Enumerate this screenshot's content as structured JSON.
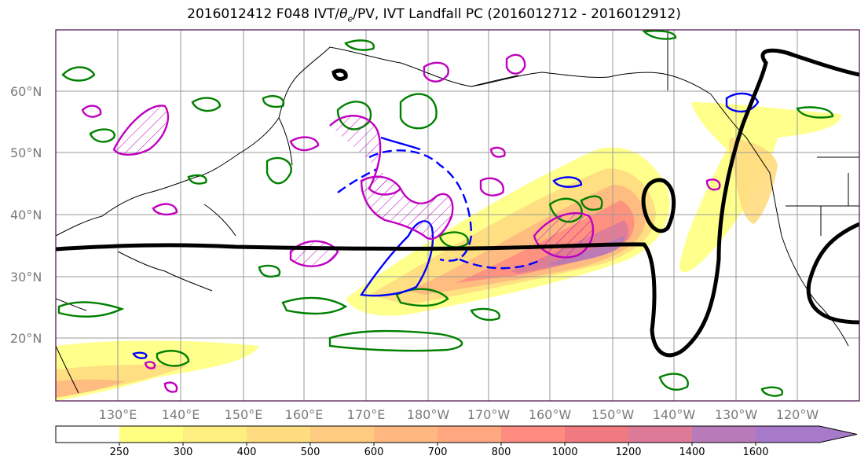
{
  "title_prefix": "2016012412 F048 IVT/",
  "title_theta": "θ",
  "title_theta_sub": "e",
  "title_suffix": "/PV, IVT Landfall PC (2016012712 - 2016012912)",
  "map": {
    "lat_labels": [
      "60°N",
      "50°N",
      "40°N",
      "30°N",
      "20°N"
    ],
    "lon_labels": [
      "130°E",
      "140°E",
      "150°E",
      "160°E",
      "170°E",
      "180°W",
      "170°W",
      "160°W",
      "150°W",
      "140°W",
      "130°W",
      "120°W"
    ]
  },
  "colorbar": {
    "levels": [
      "250",
      "300",
      "400",
      "500",
      "600",
      "700",
      "800",
      "1000",
      "1200",
      "1400",
      "1600"
    ],
    "colors": [
      "#ffffff",
      "#ffff80",
      "#ffef80",
      "#ffdc80",
      "#ffcb80",
      "#ffb880",
      "#ffa880",
      "#ff8c80",
      "#f07a80",
      "#dc7a98",
      "#b87ab8",
      "#a67ac8"
    ]
  },
  "colors": {
    "ivt_landfall_pc_contour": "#000000",
    "theta_e_positive": "#008000",
    "theta_e_negative": "#0000ff",
    "pv_contour": "#c000c0",
    "coastline": "#000000",
    "grid": "#999999"
  }
}
